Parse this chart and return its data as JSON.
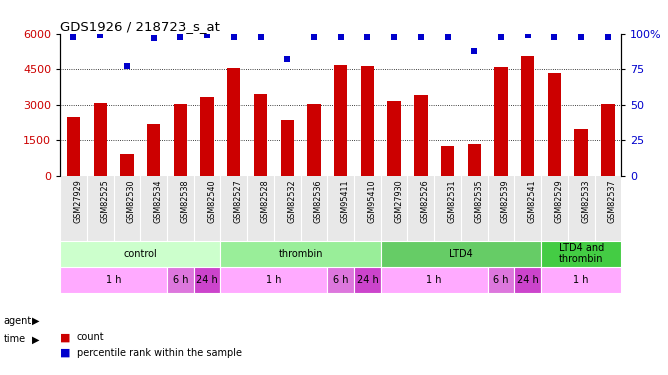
{
  "title": "GDS1926 / 218723_s_at",
  "samples": [
    "GSM27929",
    "GSM82525",
    "GSM82530",
    "GSM82534",
    "GSM82538",
    "GSM82540",
    "GSM82527",
    "GSM82528",
    "GSM82532",
    "GSM82536",
    "GSM95411",
    "GSM95410",
    "GSM27930",
    "GSM82526",
    "GSM82531",
    "GSM82535",
    "GSM82539",
    "GSM82541",
    "GSM82529",
    "GSM82533",
    "GSM82537"
  ],
  "counts": [
    2500,
    3100,
    950,
    2200,
    3050,
    3350,
    4550,
    3450,
    2350,
    3050,
    4700,
    4650,
    3150,
    3400,
    1250,
    1350,
    4600,
    5050,
    4350,
    2000,
    3050
  ],
  "percentiles": [
    98,
    99,
    77,
    97,
    98,
    99,
    98,
    98,
    82,
    98,
    98,
    98,
    98,
    98,
    98,
    88,
    98,
    99,
    98,
    98,
    98
  ],
  "agent_groups": [
    {
      "label": "control",
      "start": 0,
      "end": 6,
      "color": "#ccffcc"
    },
    {
      "label": "thrombin",
      "start": 6,
      "end": 12,
      "color": "#99ee99"
    },
    {
      "label": "LTD4",
      "start": 12,
      "end": 18,
      "color": "#66cc66"
    },
    {
      "label": "LTD4 and\nthrombin",
      "start": 18,
      "end": 21,
      "color": "#44cc44"
    }
  ],
  "time_groups": [
    {
      "label": "1 h",
      "start": 0,
      "end": 4,
      "color": "#ffaaff"
    },
    {
      "label": "6 h",
      "start": 4,
      "end": 5,
      "color": "#dd77dd"
    },
    {
      "label": "24 h",
      "start": 5,
      "end": 6,
      "color": "#cc44cc"
    },
    {
      "label": "1 h",
      "start": 6,
      "end": 10,
      "color": "#ffaaff"
    },
    {
      "label": "6 h",
      "start": 10,
      "end": 11,
      "color": "#dd77dd"
    },
    {
      "label": "24 h",
      "start": 11,
      "end": 12,
      "color": "#cc44cc"
    },
    {
      "label": "1 h",
      "start": 12,
      "end": 16,
      "color": "#ffaaff"
    },
    {
      "label": "6 h",
      "start": 16,
      "end": 17,
      "color": "#dd77dd"
    },
    {
      "label": "24 h",
      "start": 17,
      "end": 18,
      "color": "#cc44cc"
    },
    {
      "label": "1 h",
      "start": 18,
      "end": 21,
      "color": "#ffaaff"
    }
  ],
  "bar_color": "#cc0000",
  "dot_color": "#0000cc",
  "ylim_left": [
    0,
    6000
  ],
  "ylim_right": [
    0,
    100
  ],
  "yticks_left": [
    0,
    1500,
    3000,
    4500,
    6000
  ],
  "yticks_right": [
    0,
    25,
    50,
    75,
    100
  ],
  "grid_values": [
    1500,
    3000,
    4500
  ],
  "bg_color": "#ffffff",
  "label_area_color": "#e8e8e8"
}
